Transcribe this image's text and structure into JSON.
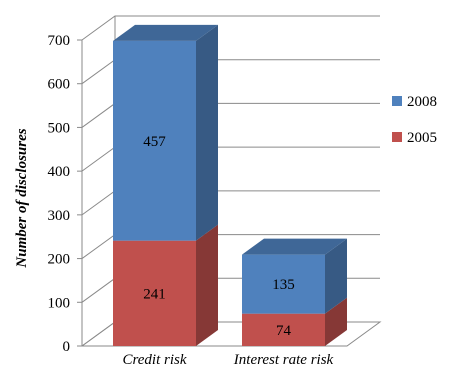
{
  "chart_data": {
    "type": "bar",
    "stacked": true,
    "three_d": true,
    "categories": [
      "Credit risk",
      "Interest rate risk"
    ],
    "series": [
      {
        "name": "2005",
        "values": [
          241,
          74
        ],
        "color": "#c0504d"
      },
      {
        "name": "2008",
        "values": [
          457,
          135
        ],
        "color": "#4f81bd"
      }
    ],
    "ylabel": "Number of disclosures",
    "ylim": [
      0,
      700
    ],
    "yticks": [
      0,
      100,
      200,
      300,
      400,
      500,
      600,
      700
    ],
    "grid": true,
    "legend": {
      "placement": "right",
      "order": [
        "2008",
        "2005"
      ]
    }
  }
}
